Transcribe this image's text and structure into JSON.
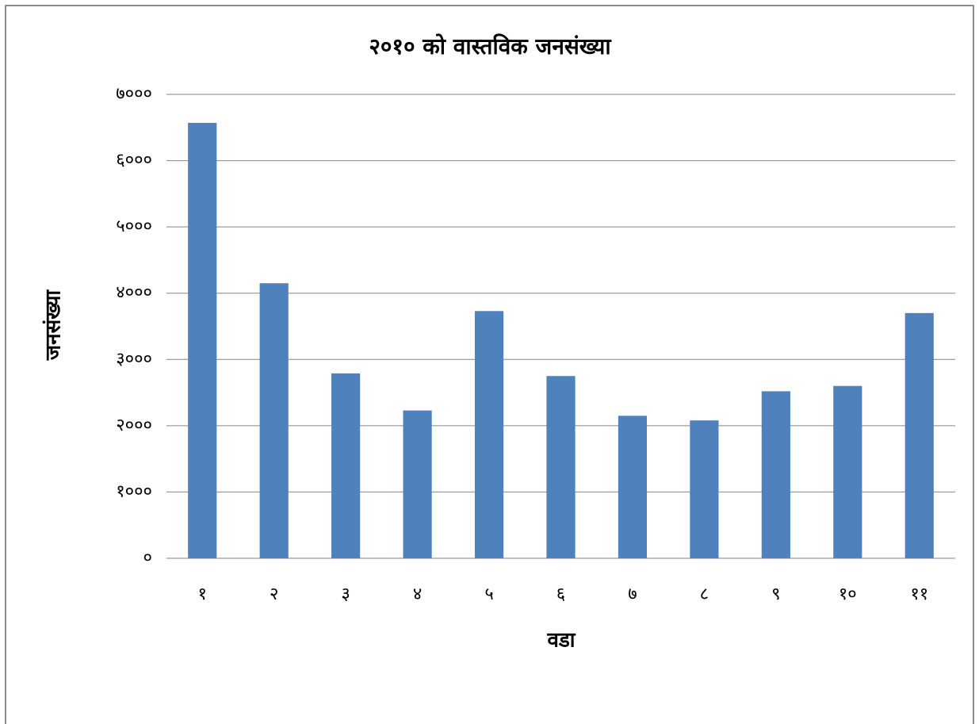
{
  "chart_data": {
    "type": "bar",
    "title": "२०१० को वास्तविक जनसंख्या",
    "x_label": "वडा",
    "y_label": "जनसंख्या",
    "categories": [
      "१",
      "२",
      "३",
      "४",
      "५",
      "६",
      "७",
      "८",
      "९",
      "१०",
      "११"
    ],
    "values": [
      6570,
      4150,
      2790,
      2230,
      3730,
      2750,
      2150,
      2080,
      2520,
      2600,
      3700
    ],
    "color": "#4f81bd",
    "ylim": [
      0,
      7000
    ],
    "yticks": [
      {
        "value": 0,
        "label": "०"
      },
      {
        "value": 1000,
        "label": "१०००"
      },
      {
        "value": 2000,
        "label": "२०००"
      },
      {
        "value": 3000,
        "label": "३०००"
      },
      {
        "value": 4000,
        "label": "४०००"
      },
      {
        "value": 5000,
        "label": "५०००"
      },
      {
        "value": 6000,
        "label": "६०००"
      },
      {
        "value": 7000,
        "label": "७०००"
      }
    ],
    "grid": true
  }
}
